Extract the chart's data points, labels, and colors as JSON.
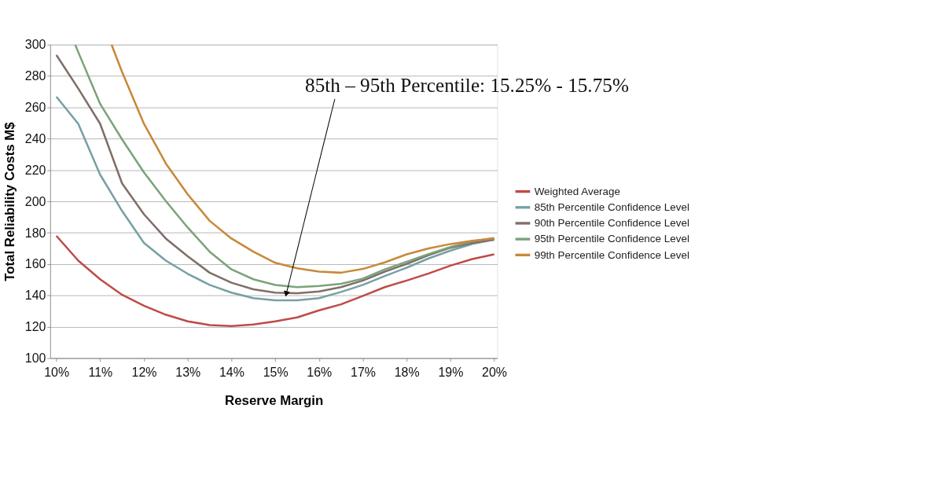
{
  "chart_data": {
    "type": "line",
    "xlabel": "Reserve Margin",
    "ylabel": "Total Reliability Costs M$",
    "x": [
      10,
      10.5,
      11,
      11.5,
      12,
      12.5,
      13,
      13.5,
      14,
      14.5,
      15,
      15.5,
      16,
      16.5,
      17,
      17.5,
      18,
      18.5,
      19,
      19.5,
      20
    ],
    "xlim": [
      9.86,
      20.07
    ],
    "xticks": [
      {
        "value": 10,
        "label": "10%"
      },
      {
        "value": 11,
        "label": "11%"
      },
      {
        "value": 12,
        "label": "12%"
      },
      {
        "value": 13,
        "label": "13%"
      },
      {
        "value": 14,
        "label": "14%"
      },
      {
        "value": 15,
        "label": "15%"
      },
      {
        "value": 16,
        "label": "16%"
      },
      {
        "value": 17,
        "label": "17%"
      },
      {
        "value": 18,
        "label": "18%"
      },
      {
        "value": 19,
        "label": "19%"
      },
      {
        "value": 20,
        "label": "20%"
      }
    ],
    "ylim": [
      100,
      300
    ],
    "yticks": [
      100,
      120,
      140,
      160,
      180,
      200,
      220,
      240,
      260,
      280,
      300
    ],
    "grid": "y",
    "legend": "right",
    "line_style": "solid",
    "series": [
      {
        "name": "Weighted Average",
        "color": "#be4b48",
        "values": [
          178,
          162.2,
          150.3,
          140.4,
          133.4,
          127.7,
          123.5,
          121.1,
          120.4,
          121.4,
          123.5,
          126,
          130.5,
          134.3,
          139.7,
          145.3,
          149.5,
          154,
          159,
          163.2,
          166.2
        ]
      },
      {
        "name": "85th Percentile Confidence Level",
        "color": "#77a0a4",
        "values": [
          266.8,
          249.5,
          217,
          193.9,
          173.5,
          162.2,
          153.8,
          146.7,
          141.8,
          138.3,
          136.9,
          136.9,
          138.3,
          142.2,
          146.7,
          152.4,
          157.7,
          163.6,
          168.6,
          172.8,
          175.6
        ]
      },
      {
        "name": "90th Percentile Confidence Level",
        "color": "#7f6f68",
        "values": [
          293.4,
          272,
          249.5,
          211.5,
          191.8,
          176.3,
          165,
          154.5,
          148.1,
          143.9,
          141.8,
          141.4,
          142.5,
          145.3,
          149.5,
          155.2,
          160.1,
          165.7,
          170.4,
          173.5,
          175.6
        ]
      },
      {
        "name": "95th Percentile Confidence Level",
        "color": "#7ba37b",
        "x": [
          10.43,
          10.5,
          11,
          11.5,
          12,
          12.5,
          13,
          13.5,
          14,
          14.5,
          15,
          15.5,
          16,
          16.5,
          17,
          17.5,
          18,
          18.5,
          19,
          19.5,
          20
        ],
        "values": [
          300,
          295.2,
          262.2,
          239.6,
          218.5,
          200.2,
          183.3,
          167.9,
          156.6,
          150.3,
          146.7,
          145.3,
          146,
          147.4,
          150.7,
          156.6,
          161.5,
          166.4,
          170.9,
          174.6,
          176.6
        ]
      },
      {
        "name": "99th Percentile Confidence Level",
        "color": "#c8883a",
        "x": [
          11.26,
          11.5,
          12,
          12.5,
          13,
          13.5,
          14,
          14.5,
          15,
          15.5,
          16,
          16.5,
          17,
          17.5,
          18,
          18.5,
          19,
          19.5,
          20
        ],
        "values": [
          300,
          282.6,
          249.5,
          224.2,
          204.5,
          187.6,
          176.3,
          167.9,
          160.8,
          157.3,
          155.2,
          154.5,
          156.9,
          161.1,
          166.2,
          170,
          172.8,
          174.9,
          176.3
        ]
      }
    ],
    "annotations": [
      {
        "text": "85th – 95th Percentile:  15.25% - 15.75%",
        "x": 15.25,
        "y": 141
      }
    ]
  }
}
